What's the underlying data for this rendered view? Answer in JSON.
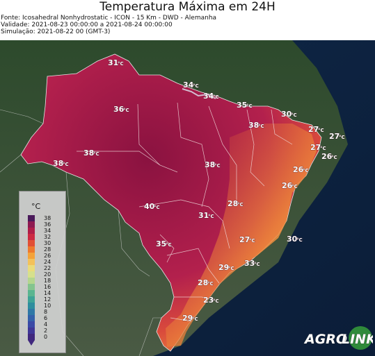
{
  "header": {
    "title": "Temperatura Máxima em 24H",
    "source": "Fonte: Icosahedral Nonhydrostatic - ICON - 15 Km - DWD - Alemanha",
    "validity": "Validade: 2021-08-23 00:00:00 a 2021-08-24 00:00:00",
    "simulation": "Simulação: 2021-08-22 00 (GMT-3)"
  },
  "map": {
    "unit_suffix": "°C",
    "labels": [
      {
        "id": "31-north",
        "value": "31"
      },
      {
        "id": "34-amapa",
        "value": "34"
      },
      {
        "id": "34-para-coast",
        "value": "34"
      },
      {
        "id": "35-maranhao",
        "value": "35"
      },
      {
        "id": "30-ceara",
        "value": "30"
      },
      {
        "id": "36-amazonas",
        "value": "36"
      },
      {
        "id": "38-piaui",
        "value": "38"
      },
      {
        "id": "27-rn",
        "value": "27"
      },
      {
        "id": "27-east",
        "value": "27"
      },
      {
        "id": "27-pb",
        "value": "27"
      },
      {
        "id": "26-pe-coast",
        "value": "26"
      },
      {
        "id": "38-amazonas-south",
        "value": "38"
      },
      {
        "id": "38-acre",
        "value": "38"
      },
      {
        "id": "38-tocantins",
        "value": "38"
      },
      {
        "id": "26-al",
        "value": "26"
      },
      {
        "id": "26-se",
        "value": "26"
      },
      {
        "id": "40-mato-grosso",
        "value": "40"
      },
      {
        "id": "28-bahia",
        "value": "28"
      },
      {
        "id": "31-goias",
        "value": "31"
      },
      {
        "id": "27-minas",
        "value": "27"
      },
      {
        "id": "30-ba-coast",
        "value": "30"
      },
      {
        "id": "35-ms",
        "value": "35"
      },
      {
        "id": "33-rj",
        "value": "33"
      },
      {
        "id": "29-sp",
        "value": "29"
      },
      {
        "id": "28-pr",
        "value": "28"
      },
      {
        "id": "23-sc",
        "value": "23"
      },
      {
        "id": "29-rs",
        "value": "29"
      }
    ]
  },
  "legend": {
    "unit": "°C",
    "ticks": [
      "38",
      "36",
      "34",
      "32",
      "30",
      "28",
      "26",
      "24",
      "22",
      "20",
      "18",
      "16",
      "14",
      "12",
      "10",
      "8",
      "6",
      "4",
      "2",
      "0"
    ],
    "colors": [
      "#4a1a5a",
      "#8e1a50",
      "#b01e48",
      "#cc2a42",
      "#e14f35",
      "#ee7a2e",
      "#f4a33a",
      "#f3c15a",
      "#eadb7a",
      "#d6e08c",
      "#b4d68e",
      "#84c48e",
      "#5ab590",
      "#3ea396",
      "#2e8e9e",
      "#2f78a6",
      "#3461aa",
      "#3a4aa6",
      "#3f3797",
      "#40287e"
    ]
  },
  "logo": {
    "text_left": "AGRO",
    "text_right": "LINK"
  }
}
